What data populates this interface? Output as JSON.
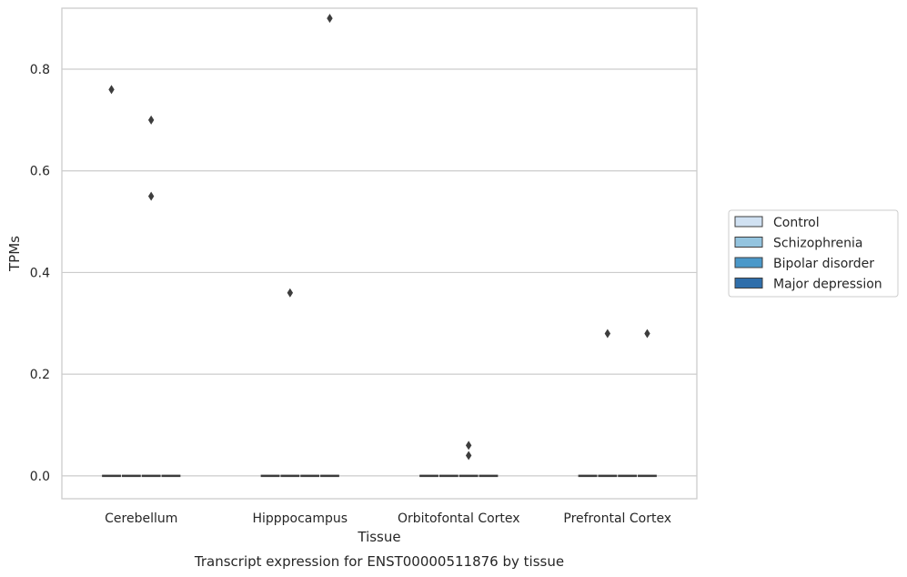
{
  "chart_data": {
    "type": "box",
    "title": "",
    "caption": "Transcript expression for ENST00000511876 by tissue",
    "xlabel": "Tissue",
    "ylabel": "TPMs",
    "categories": [
      "Cerebellum",
      "Hipppocampus",
      "Orbitofontal Cortex",
      "Prefrontal Cortex"
    ],
    "ylim": [
      -0.045,
      0.92
    ],
    "yticks": [
      0.0,
      0.2,
      0.4,
      0.6,
      0.8
    ],
    "ytick_labels": [
      "0.0",
      "0.2",
      "0.4",
      "0.6",
      "0.8"
    ],
    "grid": true,
    "legend_position": "right",
    "series": [
      {
        "name": "Control",
        "color": "#d0e1f2",
        "median": [
          0,
          0,
          0,
          0
        ],
        "outliers": [
          [
            0.76
          ],
          [],
          [],
          []
        ]
      },
      {
        "name": "Schizophrenia",
        "color": "#94c4df",
        "median": [
          0,
          0,
          0,
          0
        ],
        "outliers": [
          [],
          [
            0.36
          ],
          [],
          [
            0.28
          ]
        ]
      },
      {
        "name": "Bipolar disorder",
        "color": "#4a98c9",
        "median": [
          0,
          0,
          0,
          0
        ],
        "outliers": [
          [
            0.7,
            0.55
          ],
          [],
          [
            0.06,
            0.04
          ],
          []
        ]
      },
      {
        "name": "Major depression",
        "color": "#2f6eaa",
        "median": [
          0,
          0,
          0,
          0
        ],
        "outliers": [
          [],
          [
            0.9
          ],
          [],
          [
            0.28
          ]
        ]
      }
    ]
  }
}
